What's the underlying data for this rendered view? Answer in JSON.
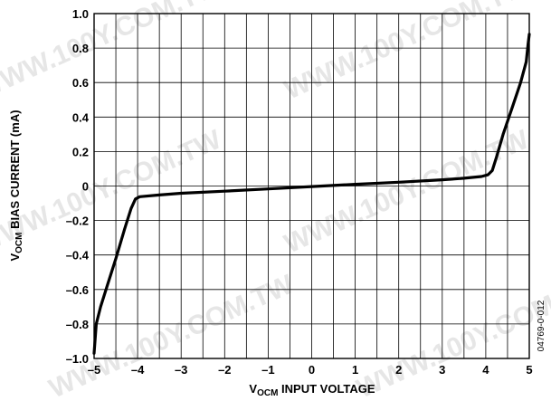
{
  "watermark": "WWW.100Y.COM.TW",
  "figure_code": "04769-0-012",
  "chart_data": {
    "type": "line",
    "title": "",
    "xlabel": {
      "main": "V",
      "sub": "OCM",
      "rest": " INPUT VOLTAGE"
    },
    "ylabel": {
      "main": "V",
      "sub": "OCM",
      "rest": " BIAS CURRENT (mA)"
    },
    "xlim": [
      -5,
      5
    ],
    "ylim": [
      -1.0,
      1.0
    ],
    "x_major_step": 1,
    "x_minor_step": 0.5,
    "y_step": 0.2,
    "x_ticks": [
      -5,
      -4,
      -3,
      -2,
      -1,
      0,
      1,
      2,
      3,
      4,
      5
    ],
    "x_tick_labels": [
      "–5",
      "–4",
      "–3",
      "–2",
      "–1",
      "0",
      "1",
      "2",
      "3",
      "4",
      "5"
    ],
    "y_ticks": [
      1.0,
      0.8,
      0.6,
      0.4,
      0.2,
      0,
      -0.2,
      -0.4,
      -0.6,
      -0.8,
      -1.0
    ],
    "y_tick_labels": [
      "1.0",
      "0.8",
      "0.6",
      "0.4",
      "0.2",
      "0",
      "–0.2",
      "–0.4",
      "–0.6",
      "–0.8",
      "–1.0"
    ],
    "grid": true,
    "series": [
      {
        "color": "#000000",
        "x": [
          -5.0,
          -4.95,
          -4.85,
          -4.7,
          -4.5,
          -4.3,
          -4.15,
          -4.05,
          -3.95,
          -3.5,
          -3.0,
          -2.0,
          -1.0,
          0.0,
          1.0,
          2.0,
          3.0,
          3.5,
          3.9,
          4.05,
          4.15,
          4.25,
          4.4,
          4.6,
          4.8,
          4.93,
          4.97,
          5.0
        ],
        "y": [
          -0.97,
          -0.8,
          -0.7,
          -0.58,
          -0.42,
          -0.25,
          -0.13,
          -0.075,
          -0.062,
          -0.052,
          -0.042,
          -0.03,
          -0.017,
          -0.003,
          0.01,
          0.022,
          0.036,
          0.045,
          0.055,
          0.065,
          0.09,
          0.17,
          0.3,
          0.45,
          0.6,
          0.72,
          0.82,
          0.88
        ]
      }
    ]
  }
}
